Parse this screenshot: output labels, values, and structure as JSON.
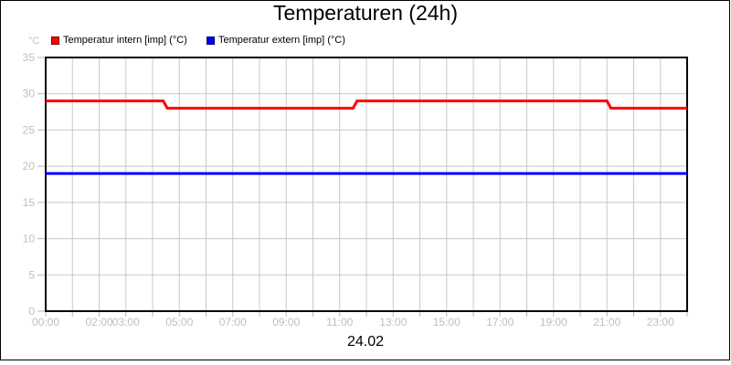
{
  "title": "Temperaturen (24h)",
  "y_axis_unit": "°C",
  "x_label": "24.02",
  "colors": {
    "series_intern": "#ff0000",
    "series_extern": "#0000ff",
    "grid": "#c8c8c8",
    "axis": "#000000",
    "tick_text": "#bfbfbf",
    "tick_mark": "#b8b8b8",
    "frame": "#000000",
    "background": "#ffffff",
    "title_text": "#000000"
  },
  "chart_data": {
    "type": "line",
    "title": "Temperaturen (24h)",
    "xlabel": "24.02",
    "ylabel": "°C",
    "ylim": [
      0,
      35
    ],
    "xlim_hours": [
      0,
      24
    ],
    "y_ticks": [
      0,
      5,
      10,
      15,
      20,
      25,
      30,
      35
    ],
    "x_gridline_interval_hours": 1,
    "grid": true,
    "legend_position": "top-left",
    "x_tick_labels": [
      {
        "hour": 0,
        "label": "00:00"
      },
      {
        "hour": 2,
        "label": "02:00"
      },
      {
        "hour": 3,
        "label": "03:00"
      },
      {
        "hour": 5,
        "label": "05:00"
      },
      {
        "hour": 7,
        "label": "07:00"
      },
      {
        "hour": 9,
        "label": "09:00"
      },
      {
        "hour": 11,
        "label": "11:00"
      },
      {
        "hour": 13,
        "label": "13:00"
      },
      {
        "hour": 15,
        "label": "15:00"
      },
      {
        "hour": 17,
        "label": "17:00"
      },
      {
        "hour": 19,
        "label": "19:00"
      },
      {
        "hour": 21,
        "label": "21:00"
      },
      {
        "hour": 23,
        "label": "23:00"
      }
    ],
    "series": [
      {
        "id": "intern",
        "name": "Temperatur intern [imp] (°C)",
        "color": "#ff0000",
        "points": [
          [
            0,
            29
          ],
          [
            4.4,
            29
          ],
          [
            4.55,
            28
          ],
          [
            11.5,
            28
          ],
          [
            11.65,
            29
          ],
          [
            21.0,
            29
          ],
          [
            21.15,
            28
          ],
          [
            24,
            28
          ]
        ]
      },
      {
        "id": "extern",
        "name": "Temperatur extern [imp] (°C)",
        "color": "#0000ff",
        "points": [
          [
            0,
            19
          ],
          [
            24,
            19
          ]
        ]
      }
    ]
  }
}
